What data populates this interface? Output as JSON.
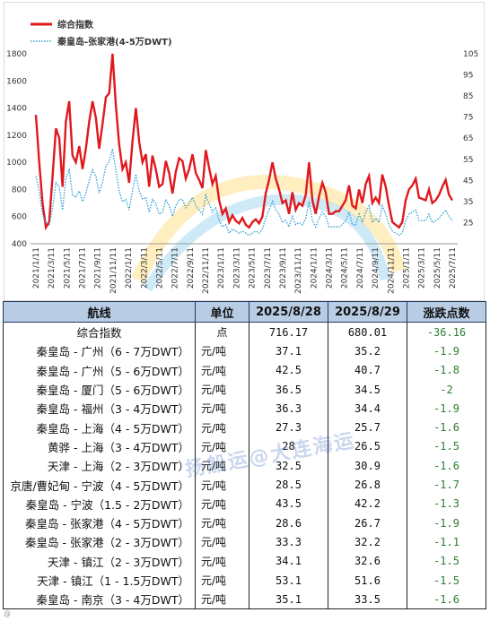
{
  "chart_data": {
    "type": "line",
    "legend": [
      "综合指数",
      "秦皇岛-张家港(4-5万DWT)"
    ],
    "left_axis": {
      "ticks": [
        400,
        600,
        800,
        1000,
        1200,
        1400,
        1600,
        1800
      ],
      "ylim": [
        400,
        1800
      ]
    },
    "right_axis": {
      "ticks": [
        25,
        35,
        45,
        55,
        65,
        75,
        85,
        95,
        105
      ],
      "ylim": [
        15,
        105
      ]
    },
    "x_ticks": [
      "2021/1/11",
      "2021/3/11",
      "2021/5/11",
      "2021/7/11",
      "2021/9/11",
      "2021/11/11",
      "2022/1/11",
      "2022/3/11",
      "2022/5/11",
      "2022/7/11",
      "2022/9/11",
      "2022/11/11",
      "2023/1/11",
      "2023/3/11",
      "2023/5/11",
      "2023/7/11",
      "2023/9/11",
      "2023/11/11",
      "2024/1/11",
      "2024/3/11",
      "2024/5/11",
      "2024/7/11",
      "2024/9/11",
      "2024/11/11",
      "2025/1/11",
      "2025/3/11",
      "2025/5/11",
      "2025/7/11"
    ],
    "series": [
      {
        "name": "综合指数",
        "axis": "left",
        "color": "#e0191e",
        "values": [
          1350,
          1000,
          700,
          520,
          560,
          900,
          1250,
          1180,
          820,
          1300,
          1450,
          1050,
          1000,
          1120,
          950,
          1100,
          1300,
          1450,
          1330,
          1100,
          1280,
          1480,
          1510,
          1800,
          1420,
          1130,
          950,
          1000,
          850,
          1150,
          1400,
          1150,
          1000,
          1060,
          820,
          1050,
          950,
          820,
          840,
          1010,
          920,
          770,
          930,
          1030,
          1010,
          880,
          950,
          1060,
          920,
          870,
          810,
          1090,
          960,
          840,
          900,
          720,
          620,
          660,
          560,
          610,
          570,
          550,
          590,
          540,
          520,
          560,
          580,
          550,
          600,
          770,
          870,
          1000,
          880,
          800,
          700,
          720,
          620,
          780,
          650,
          700,
          680,
          760,
          1000,
          720,
          620,
          750,
          850,
          780,
          620,
          620,
          640,
          640,
          680,
          720,
          830,
          680,
          660,
          800,
          700,
          840,
          900,
          700,
          740,
          700,
          910,
          820,
          680,
          560,
          540,
          520,
          560,
          720,
          800,
          830,
          880,
          740,
          730,
          720,
          800,
          700,
          720,
          760,
          820,
          870,
          760,
          720
        ]
      },
      {
        "name": "秦皇岛-张家港(4-5万DWT)",
        "axis": "right",
        "color": "#2f9fd8",
        "values": [
          47,
          40,
          29,
          25,
          24,
          32,
          44,
          42,
          31,
          46,
          50,
          38,
          37,
          40,
          35,
          39,
          45,
          50,
          47,
          39,
          44,
          52,
          54,
          60,
          50,
          40,
          35,
          36,
          31,
          40,
          48,
          40,
          36,
          37,
          30,
          36,
          34,
          29,
          30,
          36,
          33,
          28,
          33,
          36,
          36,
          32,
          34,
          37,
          33,
          31,
          29,
          38,
          34,
          30,
          32,
          26,
          23,
          24,
          20,
          22,
          21,
          20,
          21,
          20,
          19,
          20,
          21,
          20,
          22,
          27,
          31,
          35,
          31,
          29,
          25,
          26,
          23,
          28,
          24,
          25,
          24,
          27,
          35,
          26,
          23,
          27,
          30,
          28,
          23,
          23,
          23,
          23,
          24,
          26,
          30,
          24,
          24,
          29,
          25,
          30,
          33,
          25,
          27,
          25,
          33,
          29,
          24,
          21,
          20,
          19,
          20,
          26,
          29,
          30,
          31,
          26,
          26,
          26,
          29,
          25,
          26,
          27,
          29,
          31,
          28,
          26
        ]
      }
    ]
  },
  "table": {
    "headers": [
      "航线",
      "单位",
      "2025/8/28",
      "2025/8/29",
      "涨跌点数"
    ],
    "rows": [
      [
        "综合指数",
        "点",
        "716.17",
        "680.01",
        "-36.16"
      ],
      [
        "秦皇岛 - 广州（6 - 7万DWT）",
        "元/吨",
        "37.1",
        "35.2",
        "-1.9"
      ],
      [
        "秦皇岛 - 广州（5 - 6万DWT）",
        "元/吨",
        "42.5",
        "40.7",
        "-1.8"
      ],
      [
        "秦皇岛 - 厦门（5 - 6万DWT）",
        "元/吨",
        "36.5",
        "34.5",
        "-2"
      ],
      [
        "秦皇岛 - 福州（3 - 4万DWT）",
        "元/吨",
        "36.3",
        "34.4",
        "-1.9"
      ],
      [
        "秦皇岛 - 上海（4 - 5万DWT）",
        "元/吨",
        "27.3",
        "25.7",
        "-1.6"
      ],
      [
        "黄骅 - 上海（3 - 4万DWT）",
        "元/吨",
        "28",
        "26.5",
        "-1.5"
      ],
      [
        "天津 - 上海（2 - 3万DWT）",
        "元/吨",
        "32.5",
        "30.9",
        "-1.6"
      ],
      [
        "京唐/曹妃甸 - 宁波（4 - 5万DWT）",
        "元/吨",
        "28.5",
        "26.8",
        "-1.7"
      ],
      [
        "秦皇岛 - 宁波（1.5 - 2万DWT）",
        "元/吨",
        "43.5",
        "42.2",
        "-1.3"
      ],
      [
        "秦皇岛 - 张家港（4 - 5万DWT）",
        "元/吨",
        "28.6",
        "26.7",
        "-1.9"
      ],
      [
        "秦皇岛 - 张家港（2 - 3万DWT）",
        "元/吨",
        "33.3",
        "32.2",
        "-1.1"
      ],
      [
        "天津 - 镇江（2 - 3万DWT）",
        "元/吨",
        "34.1",
        "32.6",
        "-1.5"
      ],
      [
        "天津 - 镇江（1 - 1.5万DWT）",
        "元/吨",
        "53.1",
        "51.6",
        "-1.5"
      ],
      [
        "秦皇岛 - 南京（3 - 4万DWT）",
        "元/吨",
        "35.1",
        "33.5",
        "-1.6"
      ]
    ]
  },
  "watermark": "扬船运@大连海运",
  "credit": "@"
}
